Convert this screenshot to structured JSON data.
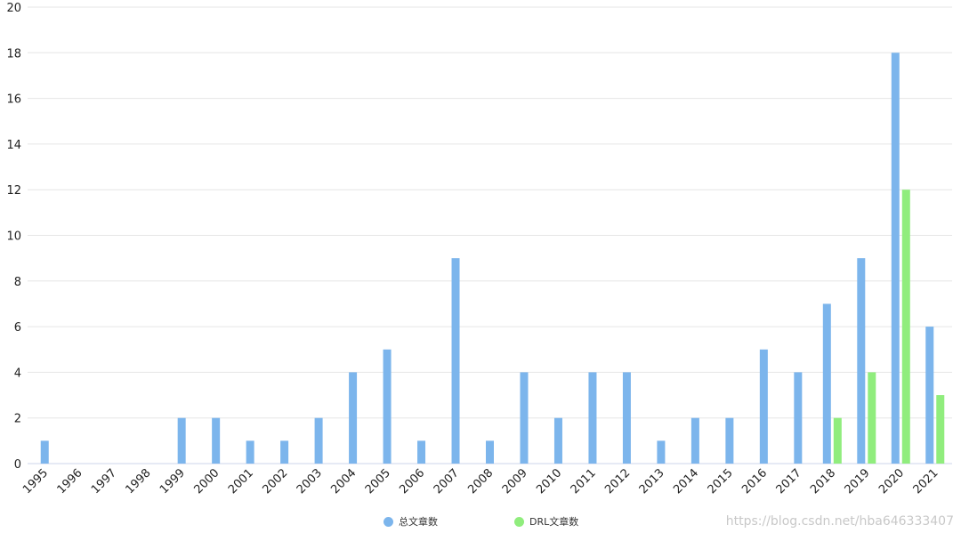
{
  "chart_data": {
    "type": "bar",
    "categories": [
      "1995",
      "1996",
      "1997",
      "1998",
      "1999",
      "2000",
      "2001",
      "2002",
      "2003",
      "2004",
      "2005",
      "2006",
      "2007",
      "2008",
      "2009",
      "2010",
      "2011",
      "2012",
      "2013",
      "2014",
      "2015",
      "2016",
      "2017",
      "2018",
      "2019",
      "2020",
      "2021"
    ],
    "series": [
      {
        "name": "总文章数",
        "color": "#7cb5ec",
        "values": [
          1,
          0,
          0,
          0,
          2,
          2,
          1,
          1,
          2,
          4,
          5,
          1,
          9,
          1,
          4,
          2,
          4,
          4,
          1,
          2,
          2,
          5,
          4,
          7,
          9,
          18,
          6
        ]
      },
      {
        "name": "DRL文章数",
        "color": "#90ed7d",
        "values": [
          0,
          0,
          0,
          0,
          0,
          0,
          0,
          0,
          0,
          0,
          0,
          0,
          0,
          0,
          0,
          0,
          0,
          0,
          0,
          0,
          0,
          0,
          0,
          2,
          4,
          12,
          3
        ]
      }
    ],
    "yticks": [
      "0",
      "2",
      "4",
      "6",
      "8",
      "10",
      "12",
      "14",
      "16",
      "18",
      "20"
    ],
    "ylim": [
      0,
      20
    ],
    "grid": true,
    "legend_position": "bottom-center"
  },
  "watermark": "https://blog.csdn.net/hba646333407"
}
